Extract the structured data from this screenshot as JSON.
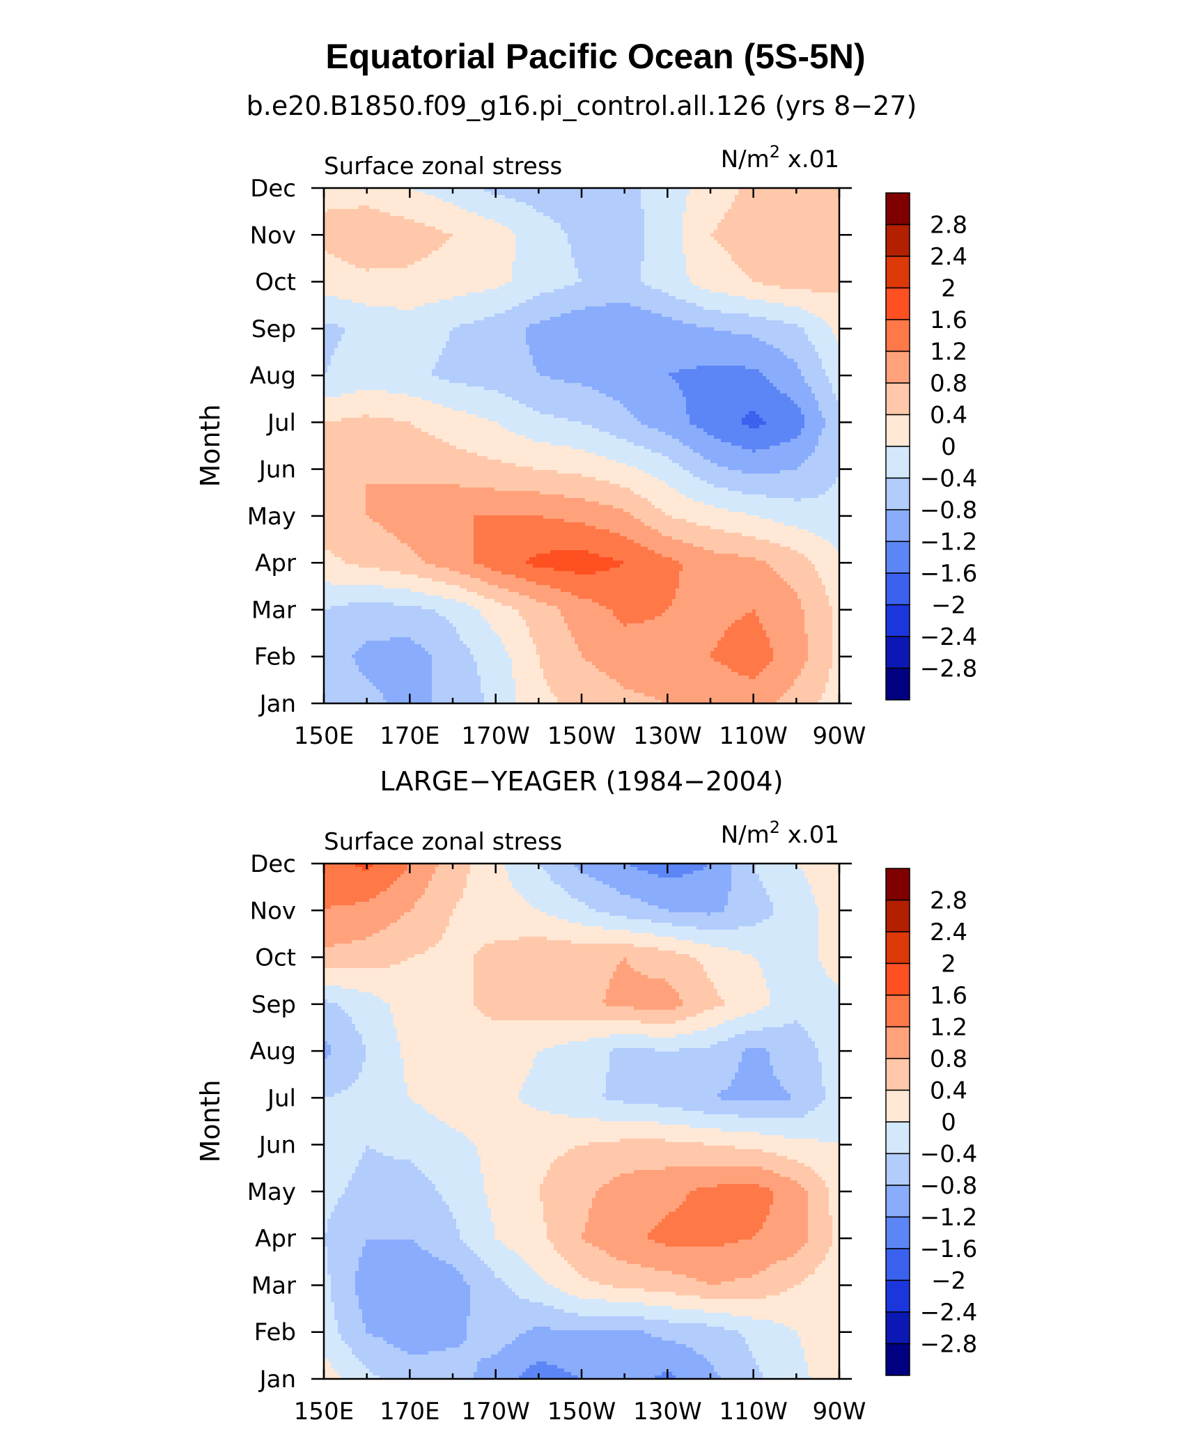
{
  "figure": {
    "title": "Equatorial Pacific Ocean (5S-5N)"
  },
  "colorbar": {
    "labels": [
      "2.8",
      "2.4",
      "2",
      "1.6",
      "1.2",
      "0.8",
      "0.4",
      "0",
      "−0.4",
      "−0.8",
      "−1.2",
      "−1.6",
      "−2",
      "−2.4",
      "−2.8"
    ],
    "colors_top_to_bottom": [
      "#800000",
      "#b22000",
      "#dc3808",
      "#ff5022",
      "#ff7848",
      "#ffa27c",
      "#ffc8aa",
      "#ffe8d6",
      "#d4e8fc",
      "#b2ccfc",
      "#8aacfc",
      "#5c86f6",
      "#3a62ee",
      "#1c36de",
      "#0c18b4",
      "#000080"
    ]
  },
  "chart_data": [
    {
      "type": "heatmap",
      "title": "b.e20.B1850.f09_g16.pi_control.all.126 (yrs 8−27)",
      "left_label": "Surface zonal stress",
      "right_label_base": "N/m",
      "right_label_sup": "2",
      "right_label_suffix": " x.01",
      "xlabel": "",
      "ylabel": "Month",
      "x_ticks": [
        "150E",
        "170E",
        "170W",
        "150W",
        "130W",
        "110W",
        "90W"
      ],
      "y_ticks": [
        "Jan",
        "Feb",
        "Mar",
        "Apr",
        "May",
        "Jun",
        "Jul",
        "Aug",
        "Sep",
        "Oct",
        "Nov",
        "Dec"
      ],
      "x_values_lon": [
        150,
        160,
        170,
        180,
        190,
        200,
        210,
        220,
        230,
        240,
        250,
        260,
        270
      ],
      "y_values": [
        "Jan",
        "Feb",
        "Mar",
        "Apr",
        "May",
        "Jun",
        "Jul",
        "Aug",
        "Sep",
        "Oct",
        "Nov",
        "Dec"
      ],
      "z": [
        [
          -0.5,
          -0.7,
          -0.9,
          -0.7,
          -0.3,
          0.3,
          0.5,
          0.7,
          0.8,
          0.9,
          1.0,
          0.6,
          0.2
        ],
        [
          -0.6,
          -0.9,
          -1.0,
          -0.6,
          -0.2,
          0.4,
          0.8,
          1.0,
          1.1,
          1.2,
          1.4,
          1.0,
          0.3
        ],
        [
          -0.4,
          -0.6,
          -0.5,
          -0.3,
          0.2,
          0.6,
          1.0,
          1.3,
          1.2,
          1.1,
          1.2,
          0.9,
          0.3
        ],
        [
          0.3,
          0.5,
          0.7,
          1.0,
          1.4,
          1.7,
          1.8,
          1.6,
          1.3,
          1.0,
          0.9,
          0.6,
          0.1
        ],
        [
          0.6,
          0.8,
          1.0,
          1.2,
          1.2,
          1.2,
          1.1,
          0.9,
          0.4,
          0.2,
          0.0,
          -0.2,
          -0.3
        ],
        [
          0.7,
          0.8,
          0.7,
          0.6,
          0.5,
          0.4,
          0.3,
          0.1,
          -0.2,
          -0.7,
          -0.9,
          -0.8,
          -0.4
        ],
        [
          0.4,
          0.5,
          0.4,
          0.2,
          0.0,
          -0.3,
          -0.4,
          -0.7,
          -1.0,
          -1.4,
          -1.7,
          -1.4,
          -0.5
        ],
        [
          -0.4,
          -0.2,
          -0.3,
          -0.5,
          -0.6,
          -0.8,
          -0.9,
          -1.0,
          -1.2,
          -1.3,
          -1.3,
          -0.9,
          -0.2
        ],
        [
          -0.5,
          -0.3,
          -0.2,
          -0.4,
          -0.6,
          -0.9,
          -1.1,
          -1.2,
          -1.0,
          -0.8,
          -0.7,
          -0.5,
          0.1
        ],
        [
          0.2,
          0.3,
          0.3,
          0.2,
          0.1,
          -0.2,
          -0.4,
          -0.5,
          -0.2,
          0.2,
          0.4,
          0.6,
          0.5
        ],
        [
          0.5,
          0.7,
          0.6,
          0.4,
          0.2,
          -0.2,
          -0.5,
          -0.6,
          -0.2,
          0.4,
          0.6,
          0.8,
          0.6
        ],
        [
          0.3,
          0.2,
          0.0,
          -0.2,
          -0.5,
          -0.6,
          -0.6,
          -0.5,
          -0.2,
          0.2,
          0.5,
          0.7,
          0.5
        ]
      ]
    },
    {
      "type": "heatmap",
      "title": "LARGE−YEAGER (1984−2004)",
      "left_label": "Surface zonal stress",
      "right_label_base": "N/m",
      "right_label_sup": "2",
      "right_label_suffix": " x.01",
      "xlabel": "",
      "ylabel": "Month",
      "x_ticks": [
        "150E",
        "170E",
        "170W",
        "150W",
        "130W",
        "110W",
        "90W"
      ],
      "y_ticks": [
        "Jan",
        "Feb",
        "Mar",
        "Apr",
        "May",
        "Jun",
        "Jul",
        "Aug",
        "Sep",
        "Oct",
        "Nov",
        "Dec"
      ],
      "x_values_lon": [
        150,
        160,
        170,
        180,
        190,
        200,
        210,
        220,
        230,
        240,
        250,
        260,
        270
      ],
      "y_values": [
        "Jan",
        "Feb",
        "Mar",
        "Apr",
        "May",
        "Jun",
        "Jul",
        "Aug",
        "Sep",
        "Oct",
        "Nov",
        "Dec"
      ],
      "z": [
        [
          0.2,
          -0.3,
          -0.6,
          -0.6,
          -1.0,
          -1.4,
          -1.2,
          -1.0,
          -1.3,
          -0.9,
          -0.5,
          -0.1,
          0.2
        ],
        [
          -0.2,
          -0.8,
          -1.0,
          -0.9,
          -0.6,
          -0.9,
          -0.8,
          -0.9,
          -0.7,
          -0.6,
          -0.3,
          0.0,
          0.2
        ],
        [
          -0.3,
          -1.0,
          -1.2,
          -1.0,
          -0.5,
          -0.1,
          0.3,
          0.5,
          0.6,
          0.8,
          0.7,
          0.4,
          0.1
        ],
        [
          -0.4,
          -0.8,
          -0.8,
          -0.5,
          0.0,
          0.3,
          0.8,
          1.1,
          1.3,
          1.3,
          1.2,
          1.0,
          0.3
        ],
        [
          -0.3,
          -0.5,
          -0.6,
          -0.3,
          0.1,
          0.4,
          0.7,
          1.0,
          1.1,
          1.3,
          1.4,
          1.0,
          0.2
        ],
        [
          -0.2,
          -0.4,
          -0.3,
          -0.1,
          0.1,
          0.3,
          0.4,
          0.5,
          0.5,
          0.4,
          0.3,
          0.1,
          0.0
        ],
        [
          -0.4,
          -0.3,
          0.0,
          0.2,
          0.1,
          -0.1,
          -0.3,
          -0.5,
          -0.6,
          -0.8,
          -0.9,
          -0.8,
          -0.2
        ],
        [
          -0.9,
          -0.4,
          0.1,
          0.3,
          0.2,
          0.0,
          -0.2,
          -0.5,
          -0.4,
          -0.5,
          -0.9,
          -0.6,
          -0.2
        ],
        [
          -0.5,
          -0.2,
          0.2,
          0.3,
          0.5,
          0.6,
          0.7,
          0.9,
          1.0,
          0.5,
          0.2,
          -0.3,
          -0.1
        ],
        [
          0.7,
          0.6,
          0.4,
          0.3,
          0.5,
          0.7,
          0.7,
          0.8,
          0.6,
          0.3,
          0.0,
          -0.2,
          0.2
        ],
        [
          1.2,
          1.1,
          0.8,
          0.4,
          0.2,
          0.0,
          -0.3,
          -0.6,
          -0.8,
          -0.9,
          -0.6,
          -0.2,
          0.2
        ],
        [
          1.4,
          1.7,
          1.2,
          0.6,
          0.1,
          -0.4,
          -0.9,
          -1.2,
          -1.4,
          -1.2,
          -0.4,
          0.0,
          0.2
        ]
      ]
    }
  ]
}
